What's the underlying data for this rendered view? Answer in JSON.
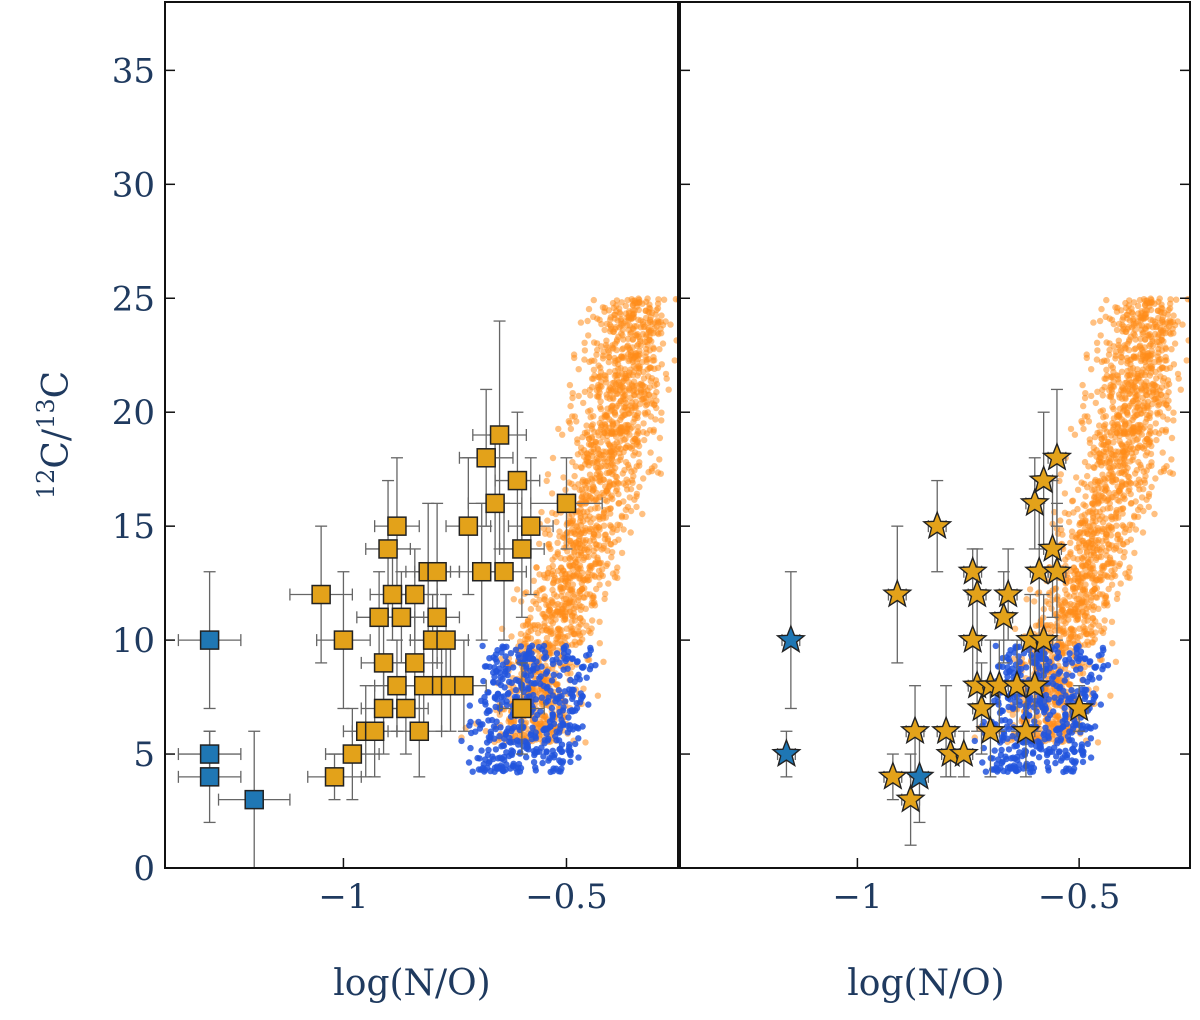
{
  "chart_data": [
    {
      "type": "scatter",
      "panel": "left",
      "xlabel": "log(N/O)",
      "ylabel_parts": [
        "12",
        "C/",
        "13",
        "C"
      ],
      "ylabel": "12C/13C",
      "xlim": [
        -1.4,
        -0.25
      ],
      "ylim": [
        0,
        38
      ],
      "x_ticks": [
        -1,
        -0.5
      ],
      "x_tick_labels": [
        "−1",
        "−0.5"
      ],
      "y_ticks": [
        0,
        5,
        10,
        15,
        20,
        25,
        30,
        35
      ],
      "y_tick_labels": [
        "0",
        "5",
        "10",
        "15",
        "20",
        "25",
        "30",
        "35"
      ],
      "series": [
        {
          "name": "observed-orange-squares",
          "marker": "square",
          "color": "#e3a21a",
          "points": [
            {
              "x": -1.05,
              "y": 12,
              "xerr": 0.07,
              "yerr": 3
            },
            {
              "x": -1.0,
              "y": 10,
              "xerr": 0.06,
              "yerr": 3
            },
            {
              "x": -1.02,
              "y": 4,
              "xerr": 0.06,
              "yerr": 1
            },
            {
              "x": -0.98,
              "y": 5,
              "xerr": 0.06,
              "yerr": 2
            },
            {
              "x": -0.95,
              "y": 6,
              "xerr": 0.05,
              "yerr": 2
            },
            {
              "x": -0.93,
              "y": 6,
              "xerr": 0.05,
              "yerr": 2
            },
            {
              "x": -0.92,
              "y": 11,
              "xerr": 0.05,
              "yerr": 2
            },
            {
              "x": -0.91,
              "y": 9,
              "xerr": 0.05,
              "yerr": 2
            },
            {
              "x": -0.9,
              "y": 14,
              "xerr": 0.05,
              "yerr": 3
            },
            {
              "x": -0.89,
              "y": 12,
              "xerr": 0.05,
              "yerr": 2
            },
            {
              "x": -0.88,
              "y": 8,
              "xerr": 0.05,
              "yerr": 2
            },
            {
              "x": -0.88,
              "y": 15,
              "xerr": 0.05,
              "yerr": 3
            },
            {
              "x": -0.87,
              "y": 11,
              "xerr": 0.05,
              "yerr": 2
            },
            {
              "x": -0.86,
              "y": 7,
              "xerr": 0.05,
              "yerr": 2
            },
            {
              "x": -0.91,
              "y": 7,
              "xerr": 0.05,
              "yerr": 2
            },
            {
              "x": -0.84,
              "y": 12,
              "xerr": 0.05,
              "yerr": 2
            },
            {
              "x": -0.84,
              "y": 9,
              "xerr": 0.05,
              "yerr": 2
            },
            {
              "x": -0.83,
              "y": 6,
              "xerr": 0.05,
              "yerr": 2
            },
            {
              "x": -0.82,
              "y": 8,
              "xerr": 0.05,
              "yerr": 2
            },
            {
              "x": -0.81,
              "y": 13,
              "xerr": 0.05,
              "yerr": 3
            },
            {
              "x": -0.8,
              "y": 10,
              "xerr": 0.05,
              "yerr": 2
            },
            {
              "x": -0.79,
              "y": 11,
              "xerr": 0.05,
              "yerr": 2
            },
            {
              "x": -0.79,
              "y": 13,
              "xerr": 0.05,
              "yerr": 3
            },
            {
              "x": -0.78,
              "y": 8,
              "xerr": 0.05,
              "yerr": 2
            },
            {
              "x": -0.77,
              "y": 10,
              "xerr": 0.05,
              "yerr": 2
            },
            {
              "x": -0.76,
              "y": 8,
              "xerr": 0.05,
              "yerr": 2
            },
            {
              "x": -0.73,
              "y": 8,
              "xerr": 0.05,
              "yerr": 2
            },
            {
              "x": -0.72,
              "y": 15,
              "xerr": 0.05,
              "yerr": 3
            },
            {
              "x": -0.69,
              "y": 13,
              "xerr": 0.05,
              "yerr": 3
            },
            {
              "x": -0.68,
              "y": 18,
              "xerr": 0.06,
              "yerr": 3
            },
            {
              "x": -0.66,
              "y": 16,
              "xerr": 0.06,
              "yerr": 3
            },
            {
              "x": -0.65,
              "y": 19,
              "xerr": 0.06,
              "yerr": 5
            },
            {
              "x": -0.64,
              "y": 13,
              "xerr": 0.05,
              "yerr": 3
            },
            {
              "x": -0.61,
              "y": 17,
              "xerr": 0.05,
              "yerr": 3
            },
            {
              "x": -0.6,
              "y": 14,
              "xerr": 0.05,
              "yerr": 3
            },
            {
              "x": -0.6,
              "y": 7,
              "xerr": 0.05,
              "yerr": 2
            },
            {
              "x": -0.58,
              "y": 15,
              "xerr": 0.05,
              "yerr": 3
            },
            {
              "x": -0.5,
              "y": 16,
              "xerr": 0.08,
              "yerr": 2
            }
          ]
        },
        {
          "name": "observed-blue-squares",
          "marker": "square",
          "color": "#1f77b4",
          "points": [
            {
              "x": -1.3,
              "y": 10,
              "xerr": 0.07,
              "yerr": 3
            },
            {
              "x": -1.3,
              "y": 5,
              "xerr": 0.07,
              "yerr": 1
            },
            {
              "x": -1.3,
              "y": 4,
              "xerr": 0.07,
              "yerr": 2
            },
            {
              "x": -1.2,
              "y": 3,
              "xerr": 0.08,
              "yerr": 3
            }
          ]
        }
      ]
    },
    {
      "type": "scatter",
      "panel": "right",
      "xlabel": "log(N/O)",
      "xlim": [
        -1.4,
        -0.25
      ],
      "ylim": [
        0,
        38
      ],
      "x_ticks": [
        -1,
        -0.5
      ],
      "x_tick_labels": [
        "−1",
        "−0.5"
      ],
      "series": [
        {
          "name": "observed-orange-stars",
          "marker": "star",
          "color": "#e3a21a",
          "points": [
            {
              "x": -0.82,
              "y": 15,
              "xerr": 0.02,
              "yerr": 2
            },
            {
              "x": -0.91,
              "y": 12,
              "xerr": 0.02,
              "yerr": 3
            },
            {
              "x": -0.92,
              "y": 4,
              "xerr": 0.02,
              "yerr": 1
            },
            {
              "x": -0.88,
              "y": 3,
              "xerr": 0.02,
              "yerr": 2
            },
            {
              "x": -0.87,
              "y": 6,
              "xerr": 0.02,
              "yerr": 2
            },
            {
              "x": -0.8,
              "y": 6,
              "xerr": 0.02,
              "yerr": 2
            },
            {
              "x": -0.79,
              "y": 5,
              "xerr": 0.02,
              "yerr": 1
            },
            {
              "x": -0.76,
              "y": 5,
              "xerr": 0.02,
              "yerr": 1
            },
            {
              "x": -0.74,
              "y": 13,
              "xerr": 0.02,
              "yerr": 1
            },
            {
              "x": -0.74,
              "y": 10,
              "xerr": 0.02,
              "yerr": 2
            },
            {
              "x": -0.73,
              "y": 12,
              "xerr": 0.02,
              "yerr": 2
            },
            {
              "x": -0.73,
              "y": 8,
              "xerr": 0.02,
              "yerr": 2
            },
            {
              "x": -0.72,
              "y": 7,
              "xerr": 0.02,
              "yerr": 2
            },
            {
              "x": -0.7,
              "y": 8,
              "xerr": 0.02,
              "yerr": 2
            },
            {
              "x": -0.7,
              "y": 6,
              "xerr": 0.02,
              "yerr": 2
            },
            {
              "x": -0.68,
              "y": 8,
              "xerr": 0.02,
              "yerr": 2
            },
            {
              "x": -0.67,
              "y": 11,
              "xerr": 0.02,
              "yerr": 2
            },
            {
              "x": -0.66,
              "y": 12,
              "xerr": 0.02,
              "yerr": 2
            },
            {
              "x": -0.64,
              "y": 8,
              "xerr": 0.02,
              "yerr": 2
            },
            {
              "x": -0.62,
              "y": 6,
              "xerr": 0.02,
              "yerr": 2
            },
            {
              "x": -0.61,
              "y": 10,
              "xerr": 0.02,
              "yerr": 2
            },
            {
              "x": -0.6,
              "y": 8,
              "xerr": 0.02,
              "yerr": 2
            },
            {
              "x": -0.6,
              "y": 16,
              "xerr": 0.02,
              "yerr": 2
            },
            {
              "x": -0.59,
              "y": 13,
              "xerr": 0.02,
              "yerr": 3
            },
            {
              "x": -0.58,
              "y": 10,
              "xerr": 0.02,
              "yerr": 2
            },
            {
              "x": -0.58,
              "y": 17,
              "xerr": 0.02,
              "yerr": 3
            },
            {
              "x": -0.56,
              "y": 14,
              "xerr": 0.02,
              "yerr": 3
            },
            {
              "x": -0.55,
              "y": 13,
              "xerr": 0.02,
              "yerr": 3
            },
            {
              "x": -0.55,
              "y": 18,
              "xerr": 0.02,
              "yerr": 3
            },
            {
              "x": -0.5,
              "y": 7,
              "xerr": 0.02,
              "yerr": 1
            }
          ]
        },
        {
          "name": "observed-blue-stars",
          "marker": "star",
          "color": "#1f77b4",
          "points": [
            {
              "x": -1.15,
              "y": 10,
              "xerr": 0.02,
              "yerr": 3
            },
            {
              "x": -1.16,
              "y": 5,
              "xerr": 0.02,
              "yerr": 1
            },
            {
              "x": -0.86,
              "y": 4,
              "xerr": 0.02,
              "yerr": 2
            }
          ]
        }
      ]
    }
  ],
  "models": {
    "orange": {
      "color": "#ff8c1a"
    },
    "blue": {
      "color": "#2255dd"
    }
  }
}
